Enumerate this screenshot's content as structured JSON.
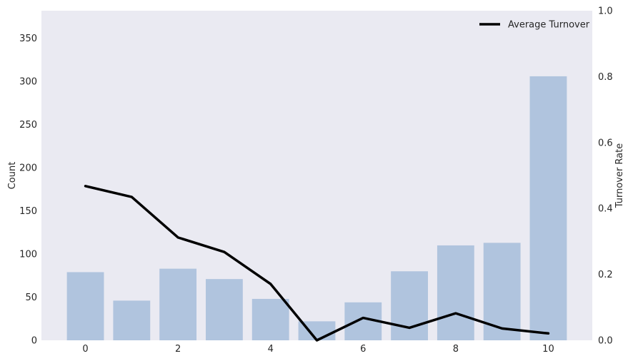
{
  "chart_data": {
    "type": "bar",
    "categories": [
      "0",
      "1",
      "2",
      "3",
      "4",
      "5",
      "6",
      "7",
      "8",
      "9",
      "10"
    ],
    "x": [
      0,
      1,
      2,
      3,
      4,
      5,
      6,
      7,
      8,
      9,
      10
    ],
    "series": [
      {
        "name": "",
        "type": "bar",
        "axis": "left",
        "color": "#b0c4de",
        "values": [
          79,
          46,
          83,
          71,
          48,
          22,
          44,
          80,
          110,
          113,
          306
        ]
      },
      {
        "name": "Average Turnover",
        "type": "line",
        "axis": "right",
        "color": "#000000",
        "values": [
          0.468,
          0.435,
          0.312,
          0.268,
          0.171,
          0.0,
          0.068,
          0.038,
          0.082,
          0.036,
          0.021
        ]
      }
    ],
    "title": "",
    "xlabel": "",
    "ylabel": "Count",
    "y2label": "Turnover Rate",
    "xlim": [
      -0.95,
      10.95
    ],
    "ylim": [
      0,
      382
    ],
    "y2lim": [
      0,
      1.0
    ],
    "xticks": [
      0,
      2,
      4,
      6,
      8,
      10
    ],
    "yticks": [
      0,
      50,
      100,
      150,
      200,
      250,
      300,
      350
    ],
    "y2ticks": [
      0.0,
      0.2,
      0.4,
      0.6,
      0.8,
      1.0
    ],
    "grid": false,
    "legend_position": "top-right",
    "background_color": "#eaeaf2"
  }
}
